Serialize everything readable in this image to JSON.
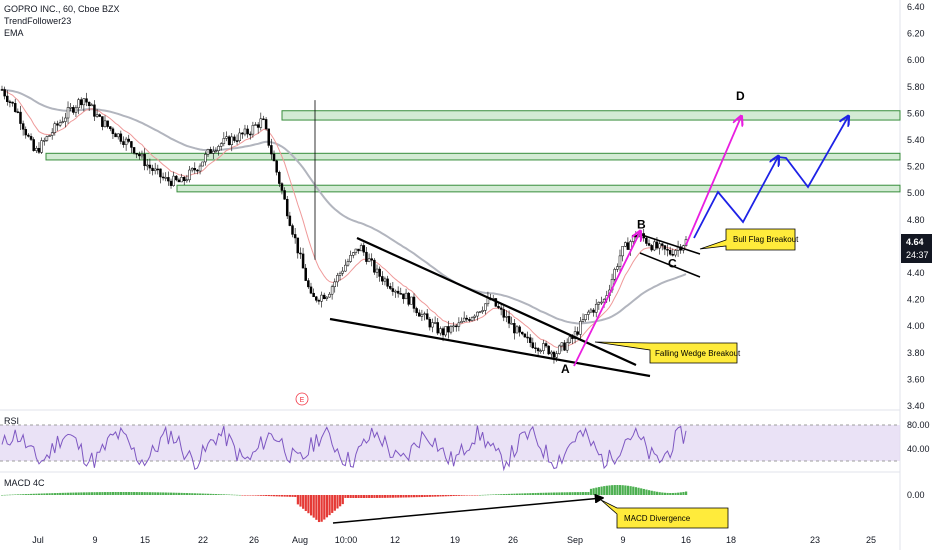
{
  "header": {
    "symbol_line": "GOPRO INC., 60, Cboe BZX",
    "author": "TrendFollower23",
    "indicator": "EMA"
  },
  "chart_data": {
    "type": "line",
    "series_type": "candlestick",
    "price_axis": {
      "ylim": [
        3.4,
        6.45
      ],
      "ticks": [
        "6.40",
        "6.20",
        "6.00",
        "5.80",
        "5.60",
        "5.40",
        "5.20",
        "5.00",
        "4.80",
        "4.60",
        "4.40",
        "4.20",
        "4.00",
        "3.80",
        "3.60",
        "3.40"
      ],
      "last_price": "4.64",
      "countdown": "24:37"
    },
    "x_axis": {
      "ticks": [
        "Jul",
        "9",
        "15",
        "22",
        "26",
        "Aug",
        "10:00",
        "12",
        "19",
        "26",
        "Sep",
        "9",
        "16",
        "18",
        "23",
        "25"
      ]
    },
    "price_path": [
      5.78,
      5.6,
      5.3,
      5.45,
      5.6,
      5.72,
      5.55,
      5.45,
      5.35,
      5.2,
      5.1,
      5.08,
      5.2,
      5.35,
      5.4,
      5.45,
      5.55,
      5.1,
      4.65,
      4.2,
      4.25,
      4.45,
      4.6,
      4.4,
      4.3,
      4.2,
      4.05,
      3.95,
      4.0,
      4.1,
      4.2,
      4.05,
      3.9,
      3.85,
      3.8,
      3.9,
      4.1,
      4.2,
      4.55,
      4.7,
      4.6,
      4.55,
      4.64
    ],
    "key_events": [
      {
        "label": "A",
        "price": 3.68
      },
      {
        "label": "B",
        "price": 4.72
      },
      {
        "label": "C",
        "price": 4.5
      },
      {
        "label": "D",
        "price": 5.7
      }
    ],
    "resistance_zones": [
      [
        5.55,
        5.62
      ],
      [
        5.25,
        5.3
      ],
      [
        5.01,
        5.06
      ]
    ],
    "annotations": [
      "Bull Flag Breakout",
      "Falling Wedge Breakout",
      "MACD Divergence"
    ],
    "event_marker": "E",
    "rsi": {
      "label": "RSI",
      "ticks": [
        "80.00",
        "40.00"
      ],
      "levels": [
        80,
        40
      ]
    },
    "macd": {
      "label": "MACD 4C",
      "ticks": [
        "0.00"
      ]
    },
    "colors": {
      "zone_fill": "#c8e6c9",
      "zone_stroke": "#388e3c",
      "projection_magenta": "#e91ee0",
      "projection_blue": "#1e22e6",
      "rsi_line": "#7e57c2",
      "rsi_band": "#e1d5f2",
      "macd_up": "#4caf50",
      "macd_down": "#e53935",
      "ema_slow": "#b2b5be",
      "ema_fast": "#ef9a9a",
      "callout_fill": "#ffeb3b",
      "price_label_bg": "#131722"
    }
  }
}
